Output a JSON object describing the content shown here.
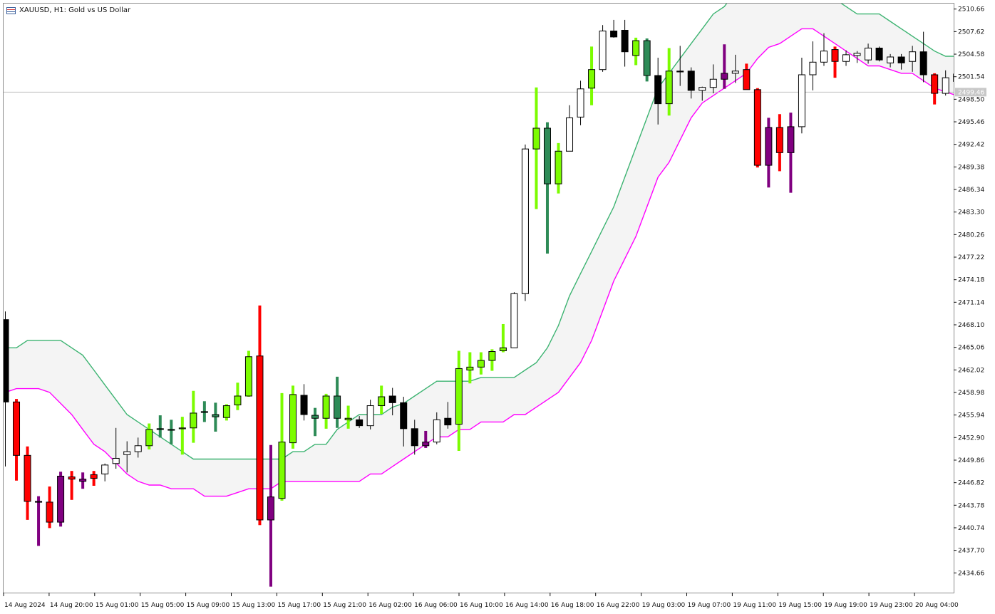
{
  "chart_header": {
    "symbol_title": "XAUUSD, H1:  Gold vs US Dollar"
  },
  "chart_data": {
    "type": "candlestick",
    "title": "XAUUSD, H1:  Gold vs US Dollar",
    "ylim": [
      2432.0,
      2511.4
    ],
    "price_ticks": [
      "2510.66",
      "2507.62",
      "2504.58",
      "2501.54",
      "2498.50",
      "2495.46",
      "2492.42",
      "2489.38",
      "2486.34",
      "2483.30",
      "2480.26",
      "2477.22",
      "2474.18",
      "2471.14",
      "2468.10",
      "2465.06",
      "2462.02",
      "2458.98",
      "2455.94",
      "2452.90",
      "2449.86",
      "2446.82",
      "2443.78",
      "2440.74",
      "2437.70",
      "2434.66"
    ],
    "time_ticks": [
      "14 Aug 2024",
      "14 Aug 20:00",
      "15 Aug 01:00",
      "15 Aug 05:00",
      "15 Aug 09:00",
      "15 Aug 13:00",
      "15 Aug 17:00",
      "15 Aug 21:00",
      "16 Aug 02:00",
      "16 Aug 06:00",
      "16 Aug 10:00",
      "16 Aug 14:00",
      "16 Aug 18:00",
      "16 Aug 22:00",
      "19 Aug 03:00",
      "19 Aug 07:00",
      "19 Aug 11:00",
      "19 Aug 15:00",
      "19 Aug 19:00",
      "19 Aug 23:00",
      "20 Aug 04:00"
    ],
    "current_price": "2499.46",
    "grid": false,
    "colors": {
      "up_hollow": "#ffffff",
      "down_solid": "#000000",
      "bull_strong": "#7cfc00",
      "bull_weak": "#2e8b57",
      "bear_strong": "#ff0000",
      "bear_weak": "#800080",
      "upper_band": "#3cb371",
      "lower_band": "#ff00ff",
      "band_fill": "#f4f4f4",
      "current_price_line": "#c0c0c0"
    },
    "candles": [
      {
        "o": 2468.8,
        "h": 2469.9,
        "l": 2449.0,
        "c": 2457.7,
        "t": "dn"
      },
      {
        "o": 2457.7,
        "h": 2458.1,
        "l": 2447.1,
        "c": 2450.5,
        "t": "rs"
      },
      {
        "o": 2450.5,
        "h": 2451.7,
        "l": 2441.8,
        "c": 2444.3,
        "t": "rs"
      },
      {
        "o": 2444.3,
        "h": 2445.0,
        "l": 2438.3,
        "c": 2444.2,
        "t": "pw"
      },
      {
        "o": 2444.2,
        "h": 2446.3,
        "l": 2440.7,
        "c": 2441.5,
        "t": "rs"
      },
      {
        "o": 2441.5,
        "h": 2448.3,
        "l": 2440.9,
        "c": 2447.7,
        "t": "pw"
      },
      {
        "o": 2447.6,
        "h": 2448.4,
        "l": 2444.5,
        "c": 2447.3,
        "t": "rs"
      },
      {
        "o": 2447.3,
        "h": 2448.2,
        "l": 2446.0,
        "c": 2447.0,
        "t": "pw"
      },
      {
        "o": 2447.4,
        "h": 2448.4,
        "l": 2446.4,
        "c": 2447.9,
        "t": "rs"
      },
      {
        "o": 2448.0,
        "h": 2449.4,
        "l": 2447.0,
        "c": 2449.2,
        "t": "up"
      },
      {
        "o": 2449.4,
        "h": 2454.2,
        "l": 2448.7,
        "c": 2450.1,
        "t": "up"
      },
      {
        "o": 2450.6,
        "h": 2452.4,
        "l": 2448.2,
        "c": 2451.0,
        "t": "up"
      },
      {
        "o": 2451.0,
        "h": 2452.9,
        "l": 2450.2,
        "c": 2451.8,
        "t": "up"
      },
      {
        "o": 2451.8,
        "h": 2454.8,
        "l": 2451.3,
        "c": 2454.0,
        "t": "gs"
      },
      {
        "o": 2454.1,
        "h": 2455.9,
        "l": 2452.9,
        "c": 2454.0,
        "t": "gw"
      },
      {
        "o": 2454.0,
        "h": 2455.3,
        "l": 2452.0,
        "c": 2453.9,
        "t": "gw"
      },
      {
        "o": 2454.2,
        "h": 2455.7,
        "l": 2450.6,
        "c": 2454.2,
        "t": "gs"
      },
      {
        "o": 2454.2,
        "h": 2459.2,
        "l": 2452.2,
        "c": 2456.2,
        "t": "gs"
      },
      {
        "o": 2456.4,
        "h": 2457.8,
        "l": 2455.0,
        "c": 2456.3,
        "t": "gw"
      },
      {
        "o": 2456.0,
        "h": 2457.6,
        "l": 2453.7,
        "c": 2455.7,
        "t": "gw"
      },
      {
        "o": 2455.6,
        "h": 2457.4,
        "l": 2455.2,
        "c": 2457.2,
        "t": "gs"
      },
      {
        "o": 2457.3,
        "h": 2460.3,
        "l": 2456.6,
        "c": 2458.5,
        "t": "gs"
      },
      {
        "o": 2458.5,
        "h": 2464.6,
        "l": 2458.4,
        "c": 2463.8,
        "t": "gs"
      },
      {
        "o": 2463.9,
        "h": 2470.7,
        "l": 2441.1,
        "c": 2441.8,
        "t": "rs"
      },
      {
        "o": 2441.8,
        "h": 2451.9,
        "l": 2432.8,
        "c": 2444.9,
        "t": "pw"
      },
      {
        "o": 2444.7,
        "h": 2458.9,
        "l": 2444.4,
        "c": 2452.3,
        "t": "gs"
      },
      {
        "o": 2452.2,
        "h": 2459.9,
        "l": 2451.4,
        "c": 2458.7,
        "t": "gs"
      },
      {
        "o": 2458.6,
        "h": 2460.1,
        "l": 2455.2,
        "c": 2456.0,
        "t": "dn"
      },
      {
        "o": 2455.9,
        "h": 2456.9,
        "l": 2453.1,
        "c": 2455.5,
        "t": "gw"
      },
      {
        "o": 2455.5,
        "h": 2458.8,
        "l": 2454.1,
        "c": 2458.5,
        "t": "gs"
      },
      {
        "o": 2458.5,
        "h": 2461.1,
        "l": 2454.2,
        "c": 2455.5,
        "t": "gw"
      },
      {
        "o": 2455.5,
        "h": 2457.2,
        "l": 2454.1,
        "c": 2455.3,
        "t": "gs"
      },
      {
        "o": 2455.3,
        "h": 2455.8,
        "l": 2454.2,
        "c": 2454.5,
        "t": "dn"
      },
      {
        "o": 2454.5,
        "h": 2458.0,
        "l": 2454.0,
        "c": 2457.2,
        "t": "up"
      },
      {
        "o": 2457.2,
        "h": 2459.9,
        "l": 2456.1,
        "c": 2458.4,
        "t": "gs"
      },
      {
        "o": 2458.5,
        "h": 2459.6,
        "l": 2455.9,
        "c": 2457.6,
        "t": "dn"
      },
      {
        "o": 2457.6,
        "h": 2458.4,
        "l": 2451.7,
        "c": 2454.1,
        "t": "dn"
      },
      {
        "o": 2454.1,
        "h": 2455.3,
        "l": 2450.6,
        "c": 2451.8,
        "t": "dn"
      },
      {
        "o": 2451.8,
        "h": 2453.8,
        "l": 2451.5,
        "c": 2452.3,
        "t": "pw"
      },
      {
        "o": 2452.3,
        "h": 2456.3,
        "l": 2452.0,
        "c": 2455.3,
        "t": "up"
      },
      {
        "o": 2455.5,
        "h": 2457.7,
        "l": 2454.1,
        "c": 2454.6,
        "t": "dn"
      },
      {
        "o": 2454.7,
        "h": 2464.6,
        "l": 2451.1,
        "c": 2462.2,
        "t": "gs"
      },
      {
        "o": 2462.4,
        "h": 2464.4,
        "l": 2460.2,
        "c": 2462.0,
        "t": "gs"
      },
      {
        "o": 2462.4,
        "h": 2464.4,
        "l": 2461.4,
        "c": 2463.3,
        "t": "gs"
      },
      {
        "o": 2463.3,
        "h": 2464.8,
        "l": 2461.9,
        "c": 2464.5,
        "t": "gs"
      },
      {
        "o": 2464.6,
        "h": 2468.2,
        "l": 2464.4,
        "c": 2465.0,
        "t": "gs"
      },
      {
        "o": 2465.0,
        "h": 2472.5,
        "l": 2465.0,
        "c": 2472.3,
        "t": "up"
      },
      {
        "o": 2472.3,
        "h": 2492.4,
        "l": 2471.3,
        "c": 2491.8,
        "t": "up"
      },
      {
        "o": 2491.8,
        "h": 2500.1,
        "l": 2483.7,
        "c": 2494.6,
        "t": "gs"
      },
      {
        "o": 2494.6,
        "h": 2495.4,
        "l": 2477.7,
        "c": 2487.1,
        "t": "gw"
      },
      {
        "o": 2487.1,
        "h": 2492.6,
        "l": 2485.8,
        "c": 2491.5,
        "t": "gs"
      },
      {
        "o": 2491.5,
        "h": 2497.7,
        "l": 2491.5,
        "c": 2496.0,
        "t": "up"
      },
      {
        "o": 2496.1,
        "h": 2501.0,
        "l": 2495.0,
        "c": 2499.9,
        "t": "up"
      },
      {
        "o": 2500.0,
        "h": 2505.6,
        "l": 2497.7,
        "c": 2502.5,
        "t": "gs"
      },
      {
        "o": 2502.5,
        "h": 2508.5,
        "l": 2502.2,
        "c": 2507.7,
        "t": "up"
      },
      {
        "o": 2507.7,
        "h": 2509.2,
        "l": 2506.8,
        "c": 2506.9,
        "t": "dn"
      },
      {
        "o": 2507.8,
        "h": 2509.2,
        "l": 2502.9,
        "c": 2504.9,
        "t": "dn"
      },
      {
        "o": 2504.4,
        "h": 2506.8,
        "l": 2503.1,
        "c": 2506.4,
        "t": "gs"
      },
      {
        "o": 2506.4,
        "h": 2506.7,
        "l": 2500.9,
        "c": 2501.7,
        "t": "gw"
      },
      {
        "o": 2501.7,
        "h": 2504.1,
        "l": 2495.1,
        "c": 2497.9,
        "t": "dn"
      },
      {
        "o": 2497.9,
        "h": 2505.4,
        "l": 2496.3,
        "c": 2502.3,
        "t": "gs"
      },
      {
        "o": 2502.2,
        "h": 2505.7,
        "l": 2500.3,
        "c": 2502.3,
        "t": "dn"
      },
      {
        "o": 2502.3,
        "h": 2502.8,
        "l": 2498.6,
        "c": 2499.7,
        "t": "dn"
      },
      {
        "o": 2499.7,
        "h": 2500.2,
        "l": 2498.3,
        "c": 2500.1,
        "t": "up"
      },
      {
        "o": 2500.1,
        "h": 2503.2,
        "l": 2499.3,
        "c": 2501.2,
        "t": "up"
      },
      {
        "o": 2501.2,
        "h": 2505.9,
        "l": 2499.9,
        "c": 2502.0,
        "t": "pw"
      },
      {
        "o": 2502.0,
        "h": 2504.5,
        "l": 2500.7,
        "c": 2502.3,
        "t": "up"
      },
      {
        "o": 2502.5,
        "h": 2503.3,
        "l": 2499.8,
        "c": 2499.8,
        "t": "rs"
      },
      {
        "o": 2499.8,
        "h": 2500.0,
        "l": 2489.3,
        "c": 2489.6,
        "t": "rs"
      },
      {
        "o": 2489.6,
        "h": 2496.0,
        "l": 2486.6,
        "c": 2494.7,
        "t": "pw"
      },
      {
        "o": 2494.7,
        "h": 2496.5,
        "l": 2488.8,
        "c": 2491.3,
        "t": "rs"
      },
      {
        "o": 2491.3,
        "h": 2496.7,
        "l": 2485.9,
        "c": 2494.8,
        "t": "pw"
      },
      {
        "o": 2494.8,
        "h": 2504.1,
        "l": 2493.9,
        "c": 2501.8,
        "t": "up"
      },
      {
        "o": 2501.8,
        "h": 2506.3,
        "l": 2499.7,
        "c": 2503.5,
        "t": "up"
      },
      {
        "o": 2503.5,
        "h": 2507.4,
        "l": 2503.0,
        "c": 2505.0,
        "t": "up"
      },
      {
        "o": 2505.2,
        "h": 2505.6,
        "l": 2501.4,
        "c": 2503.6,
        "t": "rs"
      },
      {
        "o": 2503.6,
        "h": 2505.1,
        "l": 2503.0,
        "c": 2504.5,
        "t": "up"
      },
      {
        "o": 2504.4,
        "h": 2505.0,
        "l": 2503.4,
        "c": 2504.7,
        "t": "up"
      },
      {
        "o": 2503.8,
        "h": 2506.0,
        "l": 2503.3,
        "c": 2505.4,
        "t": "up"
      },
      {
        "o": 2505.4,
        "h": 2505.6,
        "l": 2503.6,
        "c": 2503.8,
        "t": "dn"
      },
      {
        "o": 2503.4,
        "h": 2504.6,
        "l": 2502.8,
        "c": 2504.2,
        "t": "up"
      },
      {
        "o": 2504.2,
        "h": 2504.6,
        "l": 2502.5,
        "c": 2503.4,
        "t": "dn"
      },
      {
        "o": 2503.6,
        "h": 2505.7,
        "l": 2502.2,
        "c": 2504.9,
        "t": "up"
      },
      {
        "o": 2504.9,
        "h": 2507.6,
        "l": 2500.8,
        "c": 2501.8,
        "t": "dn"
      },
      {
        "o": 2501.8,
        "h": 2502.0,
        "l": 2497.8,
        "c": 2499.3,
        "t": "rs"
      },
      {
        "o": 2499.3,
        "h": 2502.4,
        "l": 2499.0,
        "c": 2501.4,
        "t": "up"
      },
      {
        "o": 2501.9,
        "h": 2502.8,
        "l": 2499.3,
        "c": 2500.9,
        "t": "dn"
      }
    ],
    "upper_band": [
      2465.0,
      2465.0,
      2466.0,
      2466.0,
      2466.0,
      2466.0,
      2465.0,
      2464.0,
      2462.0,
      2460.0,
      2458.0,
      2456.0,
      2455.0,
      2454.0,
      2453.0,
      2452.0,
      2451.0,
      2450.0,
      2450.0,
      2450.0,
      2450.0,
      2450.0,
      2450.0,
      2450.0,
      2450.0,
      2450.0,
      2451.0,
      2451.0,
      2452.0,
      2452.0,
      2454.0,
      2455.0,
      2456.0,
      2456.0,
      2456.0,
      2457.0,
      2457.5,
      2458.5,
      2459.5,
      2460.5,
      2460.5,
      2460.5,
      2460.5,
      2461.0,
      2461.0,
      2461.0,
      2461.0,
      2462.0,
      2463.0,
      2465.0,
      2468.0,
      2472.0,
      2475.0,
      2478.0,
      2481.0,
      2484.0,
      2488.0,
      2492.0,
      2496.0,
      2500.0,
      2502.0,
      2504.0,
      2506.0,
      2508.0,
      2510.0,
      2511.0,
      2513.0,
      2514.0,
      2515.0,
      2516.0,
      2517.0,
      2517.0,
      2516.0,
      2515.0,
      2513.0,
      2512.0,
      2511.0,
      2510.0,
      2510.0,
      2510.0,
      2509.0,
      2508.0,
      2507.0,
      2506.0,
      2505.0,
      2504.3,
      2504.3
    ],
    "lower_band": [
      2459.0,
      2459.5,
      2459.5,
      2459.5,
      2459.0,
      2457.5,
      2456.0,
      2454.0,
      2452.0,
      2451.0,
      2449.5,
      2448.0,
      2447.0,
      2446.5,
      2446.5,
      2446.0,
      2446.0,
      2446.0,
      2445.0,
      2445.0,
      2445.0,
      2445.5,
      2446.0,
      2446.0,
      2446.0,
      2447.0,
      2447.0,
      2447.0,
      2447.0,
      2447.0,
      2447.0,
      2447.0,
      2447.0,
      2448.0,
      2448.0,
      2449.0,
      2450.0,
      2451.0,
      2452.0,
      2453.0,
      2453.0,
      2454.0,
      2454.0,
      2455.0,
      2455.0,
      2455.0,
      2456.0,
      2456.0,
      2457.0,
      2458.0,
      2459.0,
      2461.0,
      2463.0,
      2466.0,
      2470.0,
      2474.0,
      2477.0,
      2480.0,
      2484.0,
      2488.0,
      2490.0,
      2493.0,
      2496.0,
      2498.0,
      2499.0,
      2500.0,
      2501.0,
      2502.0,
      2504.0,
      2505.5,
      2506.0,
      2507.0,
      2508.0,
      2508.0,
      2507.0,
      2506.0,
      2505.0,
      2504.0,
      2503.0,
      2503.0,
      2502.5,
      2502.0,
      2502.0,
      2501.0,
      2500.0,
      2499.5,
      2499.0
    ]
  }
}
